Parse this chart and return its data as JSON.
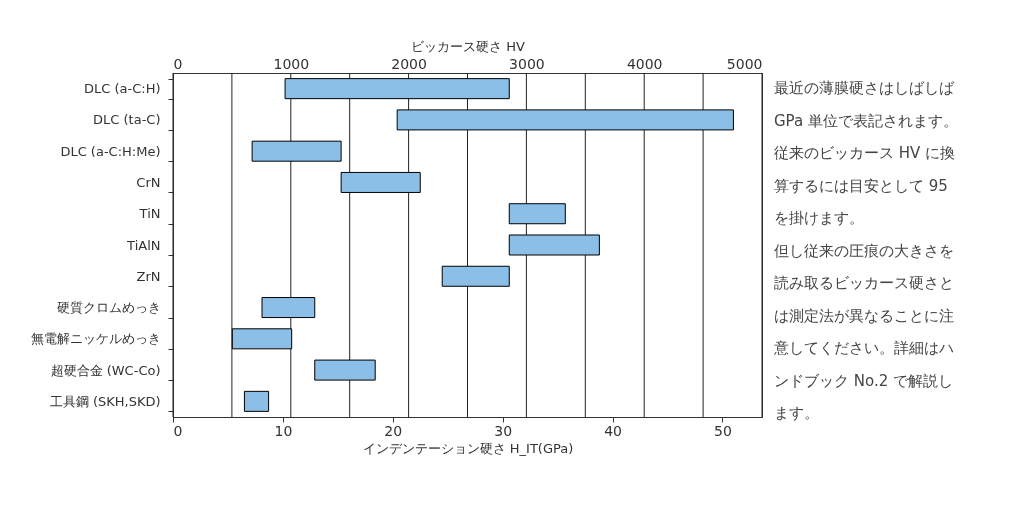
{
  "chart_data": {
    "type": "bar",
    "orientation": "horizontal",
    "categories": [
      "DLC (a-C:H)",
      "DLC (ta-C)",
      "DLC (a-C:H:Me)",
      "CrN",
      "TiN",
      "TiAlN",
      "ZrN",
      "硬質クロムめっき",
      "無電解ニッケルめっき",
      "超硬合金 (WC-Co)",
      "工具鋼 (SKH,SKD)"
    ],
    "base": [
      10.2,
      20.4,
      7.2,
      15.3,
      30.6,
      30.6,
      24.5,
      8.1,
      5.4,
      12.9,
      6.5
    ],
    "values": [
      20.4,
      30.6,
      8.1,
      7.2,
      5.1,
      8.2,
      6.1,
      4.8,
      5.4,
      5.5,
      2.2
    ],
    "color": "#8bbfe8",
    "xlim": [
      0,
      53.6
    ],
    "xticks": [
      0,
      10,
      20,
      30,
      40,
      50
    ],
    "x2lim": [
      0,
      5000
    ],
    "x2ticks": [
      0,
      {
        "value": 500,
        "label": null
      },
      1000,
      {
        "value": 1500,
        "label": null
      },
      2000,
      {
        "value": 2500,
        "label": null
      },
      3000,
      {
        "value": 3500,
        "label": null
      },
      4000,
      {
        "value": 4500,
        "label": null
      },
      5000
    ],
    "xlabel": "インデンテーション硬さ H_IT(GPa)",
    "x2label": "ビッカース硬さ HV",
    "grid": true,
    "annotations": [
      "最近の薄膜硬さはしばしばGPa 単位で表記されます。従来のビッカース HV に換算するには目安として 95を掛けます。",
      "但し従来の圧痕の大きさを読み取るビッカース硬さとは測定法が異なることに注意してください。詳細はハンドブック No.2 で解説します。"
    ]
  }
}
